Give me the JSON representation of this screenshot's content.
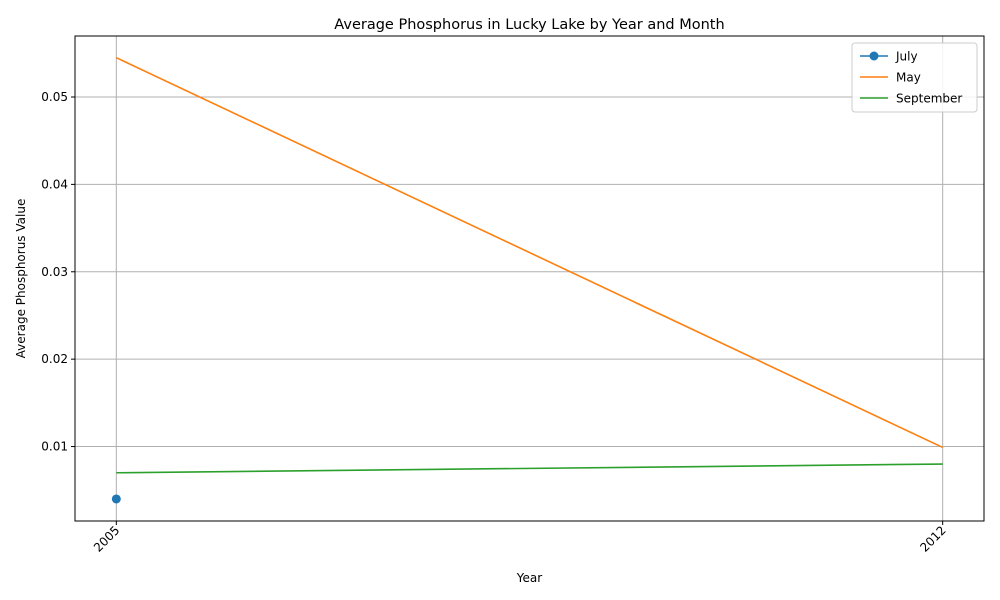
{
  "chart_data": {
    "type": "line",
    "title": "Average Phosphorus in Lucky Lake by Year and Month",
    "xlabel": "Year",
    "ylabel": "Average Phosphorus Value",
    "x_ticks": [
      "2005",
      "2012"
    ],
    "y_ticks": [
      "0.01",
      "0.02",
      "0.03",
      "0.04",
      "0.05"
    ],
    "xlim": [
      2004.65,
      2012.35
    ],
    "ylim": [
      0.00148,
      0.05698
    ],
    "grid": true,
    "legend_position": "top-right",
    "series": [
      {
        "name": "July",
        "color": "#1f77b4",
        "marker": "circle",
        "x": [
          2005
        ],
        "y": [
          0.004
        ]
      },
      {
        "name": "May",
        "color": "#ff7f0e",
        "marker": "none",
        "x": [
          2005,
          2012
        ],
        "y": [
          0.0545,
          0.0099
        ]
      },
      {
        "name": "September",
        "color": "#2ca02c",
        "marker": "none",
        "x": [
          2005,
          2012
        ],
        "y": [
          0.007,
          0.008
        ]
      }
    ]
  }
}
